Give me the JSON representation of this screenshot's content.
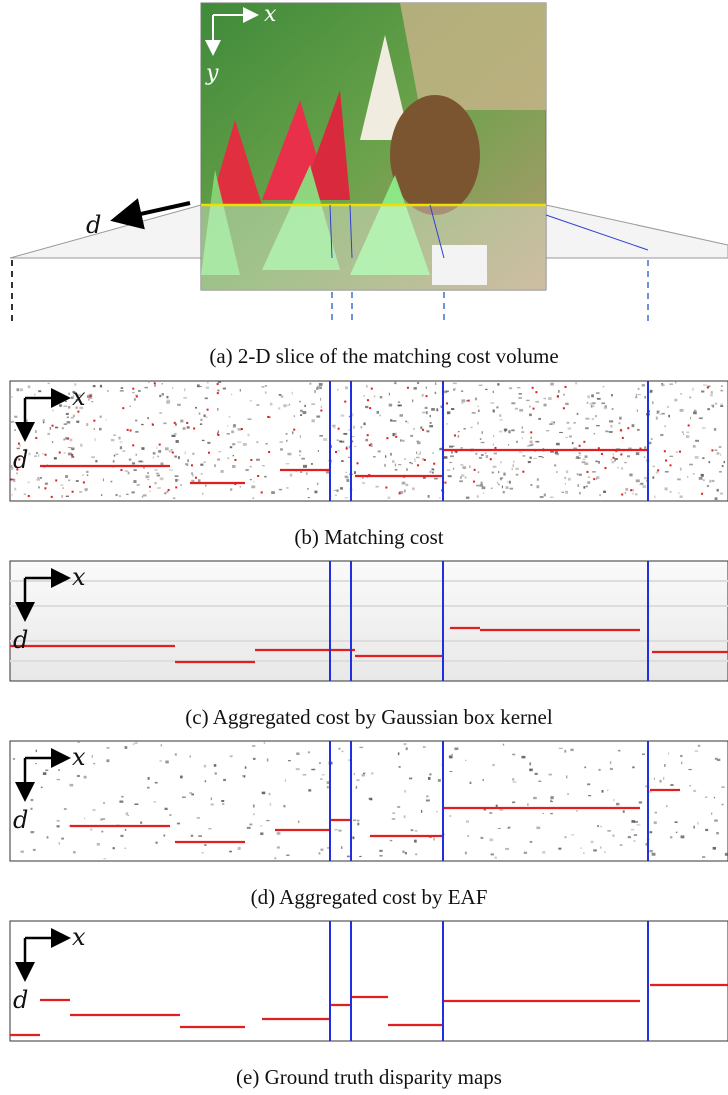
{
  "panels": [
    {
      "caption": "(a) 2-D slice of the matching cost volume",
      "axis_labels": [
        "x",
        "y",
        "d"
      ]
    },
    {
      "caption": "(b) Matching cost",
      "axis_labels": [
        "x",
        "d"
      ]
    },
    {
      "caption": "(c) Aggregated cost by Gaussian box kernel",
      "axis_labels": [
        "x",
        "d"
      ]
    },
    {
      "caption": "(d) Aggregated cost by EAF",
      "axis_labels": [
        "x",
        "d"
      ]
    },
    {
      "caption": "(e) Ground truth disparity maps",
      "axis_labels": [
        "x",
        "d"
      ]
    }
  ]
}
